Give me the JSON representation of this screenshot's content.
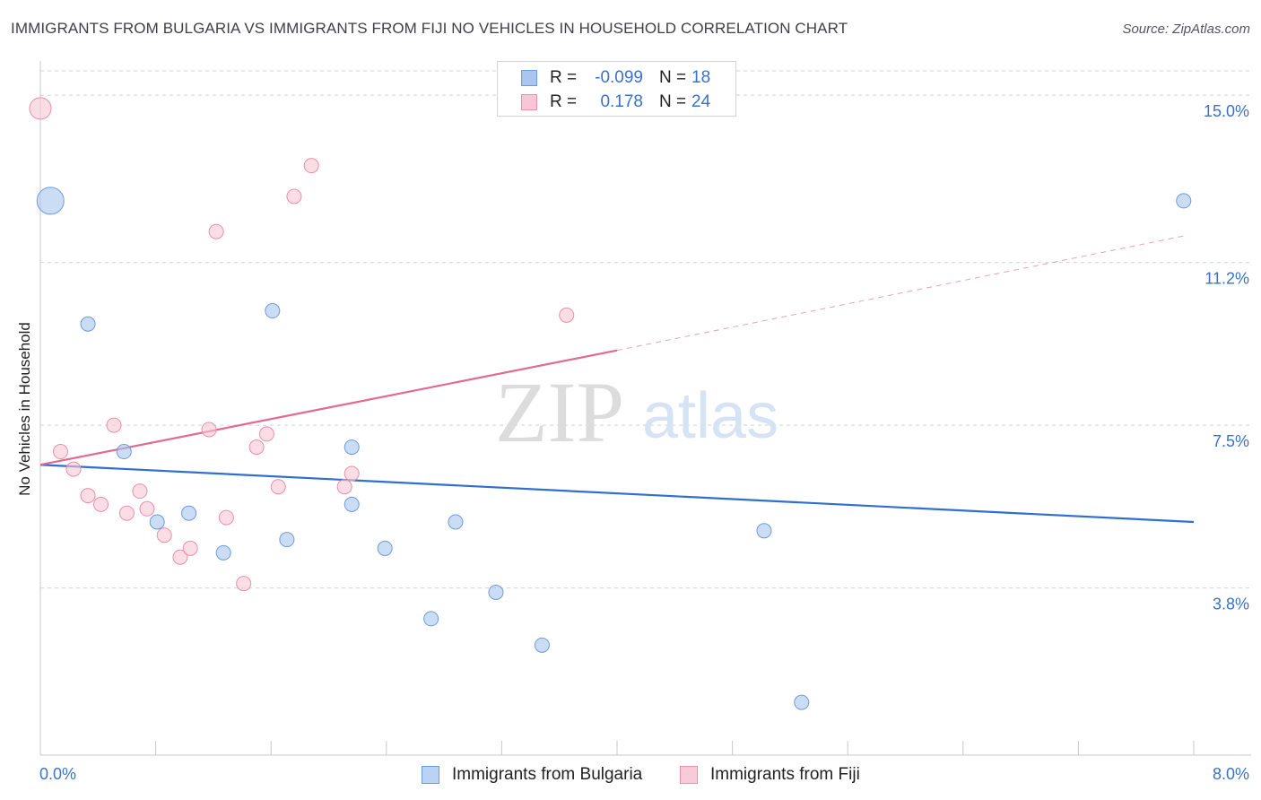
{
  "header": {
    "title": "IMMIGRANTS FROM BULGARIA VS IMMIGRANTS FROM FIJI NO VEHICLES IN HOUSEHOLD CORRELATION CHART",
    "source": "Source: ZipAtlas.com"
  },
  "watermark": {
    "zip": "ZIP",
    "atlas": "atlas"
  },
  "legend": {
    "rows": [
      {
        "r_label": "R =",
        "r_value": "-0.099",
        "n_label": "N =",
        "n_value": "18",
        "color": "#a9c6ee",
        "border": "#6d9be0"
      },
      {
        "r_label": "R =",
        "r_value": "0.178",
        "n_label": "N =",
        "n_value": "24",
        "color": "#f8c7d5",
        "border": "#ec8fac"
      }
    ]
  },
  "bottom_legend": [
    {
      "label": "Immigrants from Bulgaria",
      "color": "#b9d3f4",
      "border": "#6d9be0"
    },
    {
      "label": "Immigrants from Fiji",
      "color": "#f9cbd8",
      "border": "#ec8fac"
    }
  ],
  "chart_data": {
    "type": "scatter",
    "title": "IMMIGRANTS FROM BULGARIA VS IMMIGRANTS FROM FIJI NO VEHICLES IN HOUSEHOLD CORRELATION CHART",
    "xlabel": "",
    "ylabel": "No Vehicles in Household",
    "xlim": [
      0.0,
      8.0
    ],
    "ylim": [
      0.0,
      15.9
    ],
    "x_tick_labels": [
      "0.0%",
      "8.0%"
    ],
    "y_ticks": [
      3.8,
      7.5,
      11.2,
      15.0
    ],
    "y_tick_labels": [
      "3.8%",
      "7.5%",
      "11.2%",
      "15.0%"
    ],
    "grid": "horizontal dashed",
    "series": [
      {
        "name": "Immigrants from Bulgaria",
        "color": "#a9c6ee",
        "stroke": "#6d9be0",
        "points": [
          {
            "x": 0.07,
            "y": 12.6,
            "size": 3
          },
          {
            "x": 0.33,
            "y": 9.8,
            "size": 1
          },
          {
            "x": 0.58,
            "y": 6.9,
            "size": 1
          },
          {
            "x": 0.81,
            "y": 5.3,
            "size": 1
          },
          {
            "x": 1.03,
            "y": 5.5,
            "size": 1
          },
          {
            "x": 1.27,
            "y": 4.6,
            "size": 1
          },
          {
            "x": 1.61,
            "y": 10.1,
            "size": 1
          },
          {
            "x": 1.71,
            "y": 4.9,
            "size": 1
          },
          {
            "x": 2.16,
            "y": 5.7,
            "size": 1
          },
          {
            "x": 2.16,
            "y": 7.0,
            "size": 1
          },
          {
            "x": 2.39,
            "y": 4.7,
            "size": 1
          },
          {
            "x": 2.71,
            "y": 3.1,
            "size": 1
          },
          {
            "x": 2.88,
            "y": 5.3,
            "size": 1
          },
          {
            "x": 3.16,
            "y": 3.7,
            "size": 1
          },
          {
            "x": 3.48,
            "y": 2.5,
            "size": 1
          },
          {
            "x": 5.02,
            "y": 5.1,
            "size": 1
          },
          {
            "x": 5.28,
            "y": 1.2,
            "size": 1
          },
          {
            "x": 7.93,
            "y": 12.6,
            "size": 1
          }
        ],
        "trend": {
          "x1": 0.0,
          "y1": 6.6,
          "x2": 8.0,
          "y2": 5.3
        }
      },
      {
        "name": "Immigrants from Fiji",
        "color": "#f8c7d5",
        "stroke": "#ec8fac",
        "points": [
          {
            "x": 0.0,
            "y": 14.7,
            "size": 2
          },
          {
            "x": 0.14,
            "y": 6.9,
            "size": 1
          },
          {
            "x": 0.23,
            "y": 6.5,
            "size": 1
          },
          {
            "x": 0.33,
            "y": 5.9,
            "size": 1
          },
          {
            "x": 0.42,
            "y": 5.7,
            "size": 1
          },
          {
            "x": 0.51,
            "y": 7.5,
            "size": 1
          },
          {
            "x": 0.6,
            "y": 5.5,
            "size": 1
          },
          {
            "x": 0.69,
            "y": 6.0,
            "size": 1
          },
          {
            "x": 0.74,
            "y": 5.6,
            "size": 1
          },
          {
            "x": 0.86,
            "y": 5.0,
            "size": 1
          },
          {
            "x": 0.97,
            "y": 4.5,
            "size": 1
          },
          {
            "x": 1.04,
            "y": 4.7,
            "size": 1
          },
          {
            "x": 1.17,
            "y": 7.4,
            "size": 1
          },
          {
            "x": 1.22,
            "y": 11.9,
            "size": 1
          },
          {
            "x": 1.29,
            "y": 5.4,
            "size": 1
          },
          {
            "x": 1.41,
            "y": 3.9,
            "size": 1
          },
          {
            "x": 1.5,
            "y": 7.0,
            "size": 1
          },
          {
            "x": 1.57,
            "y": 7.3,
            "size": 1
          },
          {
            "x": 1.65,
            "y": 6.1,
            "size": 1
          },
          {
            "x": 1.76,
            "y": 12.7,
            "size": 1
          },
          {
            "x": 1.88,
            "y": 13.4,
            "size": 1
          },
          {
            "x": 2.11,
            "y": 6.1,
            "size": 1
          },
          {
            "x": 2.16,
            "y": 6.4,
            "size": 1
          },
          {
            "x": 3.65,
            "y": 10.0,
            "size": 1
          }
        ],
        "trend": {
          "x1": 0.0,
          "y1": 6.6,
          "x2": 4.0,
          "y2": 9.2
        },
        "trend_extension": {
          "x1": 4.0,
          "y1": 9.2,
          "x2": 7.93,
          "y2": 11.8
        }
      }
    ]
  }
}
